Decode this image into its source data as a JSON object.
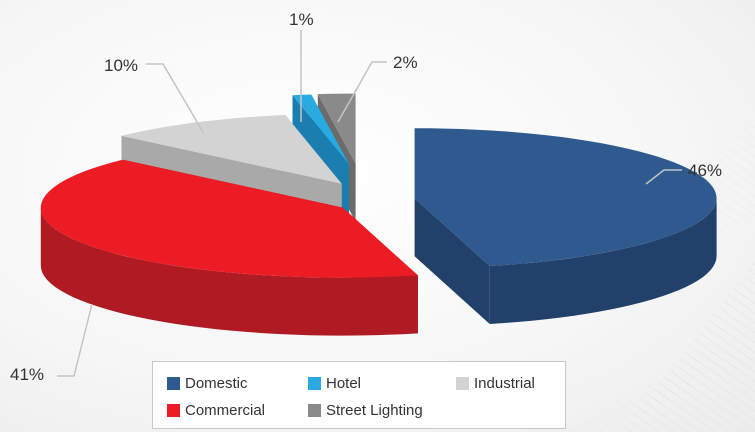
{
  "chart_data": {
    "type": "pie",
    "style": "3d-exploded",
    "categories": [
      "Domestic",
      "Commercial",
      "Industrial",
      "Hotel",
      "Street Lighting"
    ],
    "values": [
      46,
      41,
      10,
      1,
      2
    ],
    "value_labels": [
      "46%",
      "41%",
      "10%",
      "1%",
      "2%"
    ],
    "colors": [
      "#2f5a8f",
      "#ed1c24",
      "#d3d3d3",
      "#29abe2",
      "#8a8a8a"
    ],
    "side_colors": [
      "#21406a",
      "#b01a23",
      "#a9a9a9",
      "#1a7fb0",
      "#6b6b6b"
    ],
    "legend": {
      "position": "bottom",
      "entries": [
        "Domestic",
        "Hotel",
        "Industrial",
        "Commercial",
        "Street Lighting"
      ]
    }
  }
}
